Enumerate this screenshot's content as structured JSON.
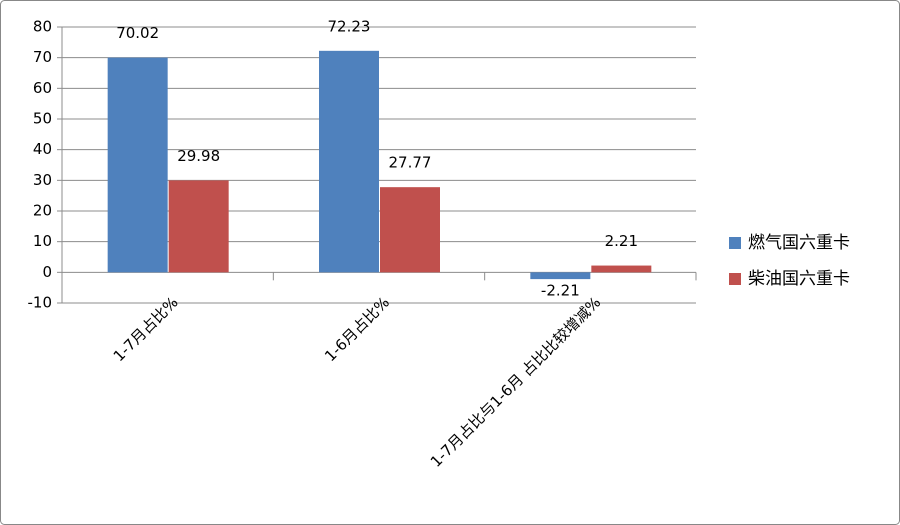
{
  "chart_data": {
    "type": "bar",
    "categories": [
      "1-7月占比%",
      "1-6月占比%",
      "1-7月占比与1-6月 占比比较增减%"
    ],
    "series": [
      {
        "name": "燃气国六重卡",
        "color": "#4f81bd",
        "values": [
          70.02,
          72.23,
          -2.21
        ]
      },
      {
        "name": "柴油国六重卡",
        "color": "#c0504d",
        "values": [
          29.98,
          27.77,
          2.21
        ]
      }
    ],
    "ylim": [
      -10,
      80
    ],
    "yticks": [
      -10,
      0,
      10,
      20,
      30,
      40,
      50,
      60,
      70,
      80
    ],
    "grid": true,
    "legend": "right"
  }
}
